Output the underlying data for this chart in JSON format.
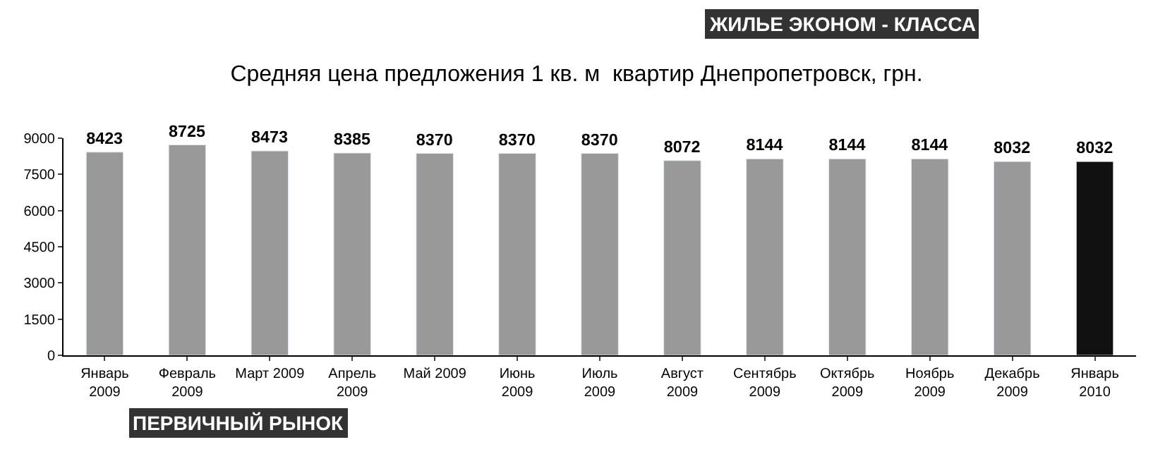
{
  "chart_data": {
    "type": "bar",
    "title": "Средняя цена предложения 1 кв. м  квартир Днепропетровск, грн.",
    "categories": [
      "Январь\n2009",
      "Февраль\n2009",
      "Март 2009",
      "Апрель\n2009",
      "Май 2009",
      "Июнь\n2009",
      "Июль\n2009",
      "Август\n2009",
      "Сентябрь\n2009",
      "Октябрь\n2009",
      "Ноябрь\n2009",
      "Декабрь\n2009",
      "Январь\n2010"
    ],
    "values": [
      8423,
      8725,
      8473,
      8385,
      8370,
      8370,
      8370,
      8072,
      8144,
      8144,
      8144,
      8032,
      8032
    ],
    "colors": [
      "#999999",
      "#999999",
      "#999999",
      "#999999",
      "#999999",
      "#999999",
      "#999999",
      "#999999",
      "#999999",
      "#999999",
      "#999999",
      "#999999",
      "#111111"
    ],
    "ylim": [
      0,
      9000
    ],
    "yticks": [
      0,
      1500,
      3000,
      4500,
      6000,
      7500,
      9000
    ],
    "legend": false,
    "data_labels": true,
    "annotations": [
      "ЖИЛЬЕ ЭКОНОМ - КЛАССА",
      "ПЕРВИЧНЫЙ РЫНОК"
    ]
  }
}
